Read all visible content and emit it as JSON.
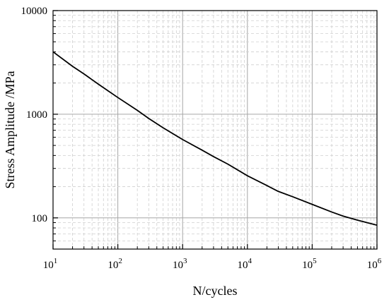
{
  "chart_data": {
    "type": "line",
    "title": "",
    "xlabel": "N/cycles",
    "ylabel": "Stress Amplitude /MPa",
    "xscale": "log",
    "yscale": "log",
    "xlim": [
      10,
      1000000
    ],
    "ylim": [
      50,
      10000
    ],
    "x_major_ticks": [
      10,
      100,
      1000,
      10000,
      100000,
      1000000
    ],
    "x_tick_labels": [
      {
        "base": "10",
        "exp": "1"
      },
      {
        "base": "10",
        "exp": "2"
      },
      {
        "base": "10",
        "exp": "3"
      },
      {
        "base": "10",
        "exp": "4"
      },
      {
        "base": "10",
        "exp": "5"
      },
      {
        "base": "10",
        "exp": "6"
      }
    ],
    "y_major_ticks": [
      100,
      1000,
      10000
    ],
    "y_tick_labels": [
      "100",
      "1000",
      "10000"
    ],
    "grid": {
      "major": true,
      "minor": true
    },
    "legend": "none",
    "colors": {
      "line": "#000000",
      "major_grid": "#a6a6a6",
      "minor_grid": "#cfcfcf",
      "axis": "#000000"
    },
    "series": [
      {
        "x": [
          10,
          20,
          30,
          50,
          100,
          200,
          300,
          500,
          1000,
          2000,
          3000,
          5000,
          10000,
          20000,
          30000,
          50000,
          100000,
          200000,
          300000,
          500000,
          1000000
        ],
        "values": [
          4000,
          2900,
          2450,
          1950,
          1450,
          1090,
          910,
          740,
          570,
          450,
          390,
          330,
          255,
          205,
          180,
          160,
          135,
          114,
          104,
          95,
          85
        ]
      }
    ]
  }
}
